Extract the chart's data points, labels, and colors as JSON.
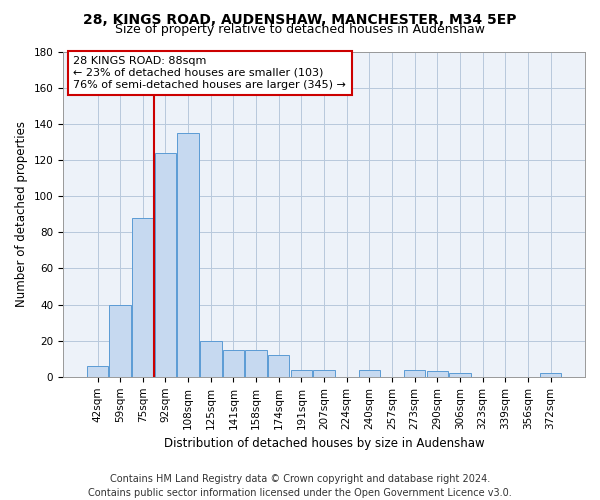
{
  "title1": "28, KINGS ROAD, AUDENSHAW, MANCHESTER, M34 5EP",
  "title2": "Size of property relative to detached houses in Audenshaw",
  "xlabel": "Distribution of detached houses by size in Audenshaw",
  "ylabel": "Number of detached properties",
  "footer1": "Contains HM Land Registry data © Crown copyright and database right 2024.",
  "footer2": "Contains public sector information licensed under the Open Government Licence v3.0.",
  "annotation_line1": "28 KINGS ROAD: 88sqm",
  "annotation_line2": "← 23% of detached houses are smaller (103)",
  "annotation_line3": "76% of semi-detached houses are larger (345) →",
  "bar_categories": [
    "42sqm",
    "59sqm",
    "75sqm",
    "92sqm",
    "108sqm",
    "125sqm",
    "141sqm",
    "158sqm",
    "174sqm",
    "191sqm",
    "207sqm",
    "224sqm",
    "240sqm",
    "257sqm",
    "273sqm",
    "290sqm",
    "306sqm",
    "323sqm",
    "339sqm",
    "356sqm",
    "372sqm"
  ],
  "bar_values": [
    6,
    40,
    88,
    124,
    135,
    20,
    15,
    15,
    12,
    4,
    4,
    0,
    4,
    0,
    4,
    3,
    2,
    0,
    0,
    0,
    2
  ],
  "bar_color": "#c6d9f0",
  "bar_edge_color": "#5b9bd5",
  "vline_color": "#cc0000",
  "vline_x_index": 3,
  "annotation_box_color": "#cc0000",
  "ylim": [
    0,
    180
  ],
  "yticks": [
    0,
    20,
    40,
    60,
    80,
    100,
    120,
    140,
    160,
    180
  ],
  "bg_color": "#edf2f9",
  "grid_color": "#b8c8dc",
  "title_fontsize": 10,
  "subtitle_fontsize": 9,
  "axis_label_fontsize": 8.5,
  "tick_fontsize": 7.5,
  "footer_fontsize": 7,
  "annot_fontsize": 8
}
